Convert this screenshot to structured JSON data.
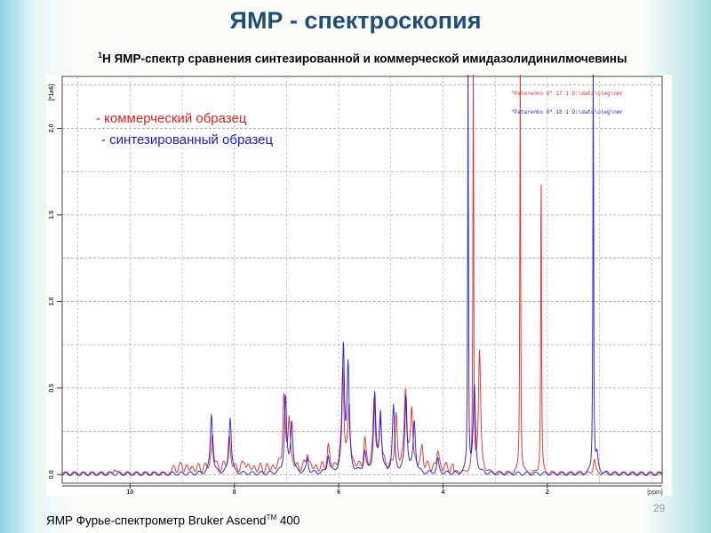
{
  "slide": {
    "title": "ЯМР - спектроскопия",
    "subtitle_sup": "1",
    "subtitle": "Н ЯМР-спектр сравнения синтезированной и коммерческой имидазолидинилмочевины",
    "footer": "ЯМР Фурье-спектрометр Bruker Ascend",
    "footer_sup": "TM",
    "footer_tail": " 400",
    "page_number": "29"
  },
  "chart_data": {
    "type": "line",
    "title": "",
    "xlabel": "[ppm]",
    "ylabel": "[*1e6]",
    "xlim": [
      11.3,
      -0.2
    ],
    "ylim": [
      -0.05,
      2.3
    ],
    "xticks": [
      "10",
      "8",
      "6",
      "4",
      "2"
    ],
    "yticks": [
      "0.0",
      "0.5",
      "1.0",
      "1.5",
      "2.0"
    ],
    "grid": true,
    "annotations": [
      {
        "text": "- коммерческий образец",
        "color": "#e8231f"
      },
      {
        "text": "- синтезированный образец",
        "color": "#1a1adb"
      }
    ],
    "legend_files": [
      {
        "text": "\"Patarenko O\"  17  1  D:\\data\\oleg\\nmr",
        "color": "#e8231f"
      },
      {
        "text": "\"Patarenko O\"  18  1  D:\\data\\oleg\\nmr",
        "color": "#1a1adb"
      }
    ],
    "series": [
      {
        "name": "коммерческий образец",
        "color": "#e8231f",
        "peaks": [
          [
            10.3,
            0.03
          ],
          [
            9.0,
            0.02
          ],
          [
            8.42,
            0.2
          ],
          [
            8.1,
            0.18
          ],
          [
            7.8,
            0.05
          ],
          [
            7.05,
            0.42
          ],
          [
            6.95,
            0.3
          ],
          [
            6.6,
            0.1
          ],
          [
            6.2,
            0.12
          ],
          [
            5.92,
            0.58
          ],
          [
            5.8,
            0.35
          ],
          [
            5.5,
            0.15
          ],
          [
            5.32,
            0.4
          ],
          [
            5.2,
            0.3
          ],
          [
            4.9,
            0.3
          ],
          [
            4.72,
            0.47
          ],
          [
            4.6,
            0.35
          ],
          [
            4.4,
            0.12
          ],
          [
            4.1,
            0.1
          ],
          [
            3.42,
            2.6
          ],
          [
            3.3,
            0.7
          ],
          [
            2.52,
            2.6
          ],
          [
            2.12,
            2.0
          ],
          [
            1.1,
            0.08
          ]
        ]
      },
      {
        "name": "синтезированный образец",
        "color": "#1a1adb",
        "peaks": [
          [
            8.44,
            0.35
          ],
          [
            8.08,
            0.33
          ],
          [
            7.02,
            0.44
          ],
          [
            6.9,
            0.3
          ],
          [
            6.6,
            0.08
          ],
          [
            6.2,
            0.1
          ],
          [
            5.91,
            0.72
          ],
          [
            5.82,
            0.6
          ],
          [
            5.5,
            0.12
          ],
          [
            5.31,
            0.45
          ],
          [
            5.2,
            0.35
          ],
          [
            4.95,
            0.38
          ],
          [
            4.71,
            0.45
          ],
          [
            4.55,
            0.3
          ],
          [
            4.1,
            0.08
          ],
          [
            3.52,
            2.6
          ],
          [
            3.4,
            0.5
          ],
          [
            1.12,
            2.6
          ],
          [
            1.05,
            0.1
          ]
        ]
      }
    ]
  }
}
